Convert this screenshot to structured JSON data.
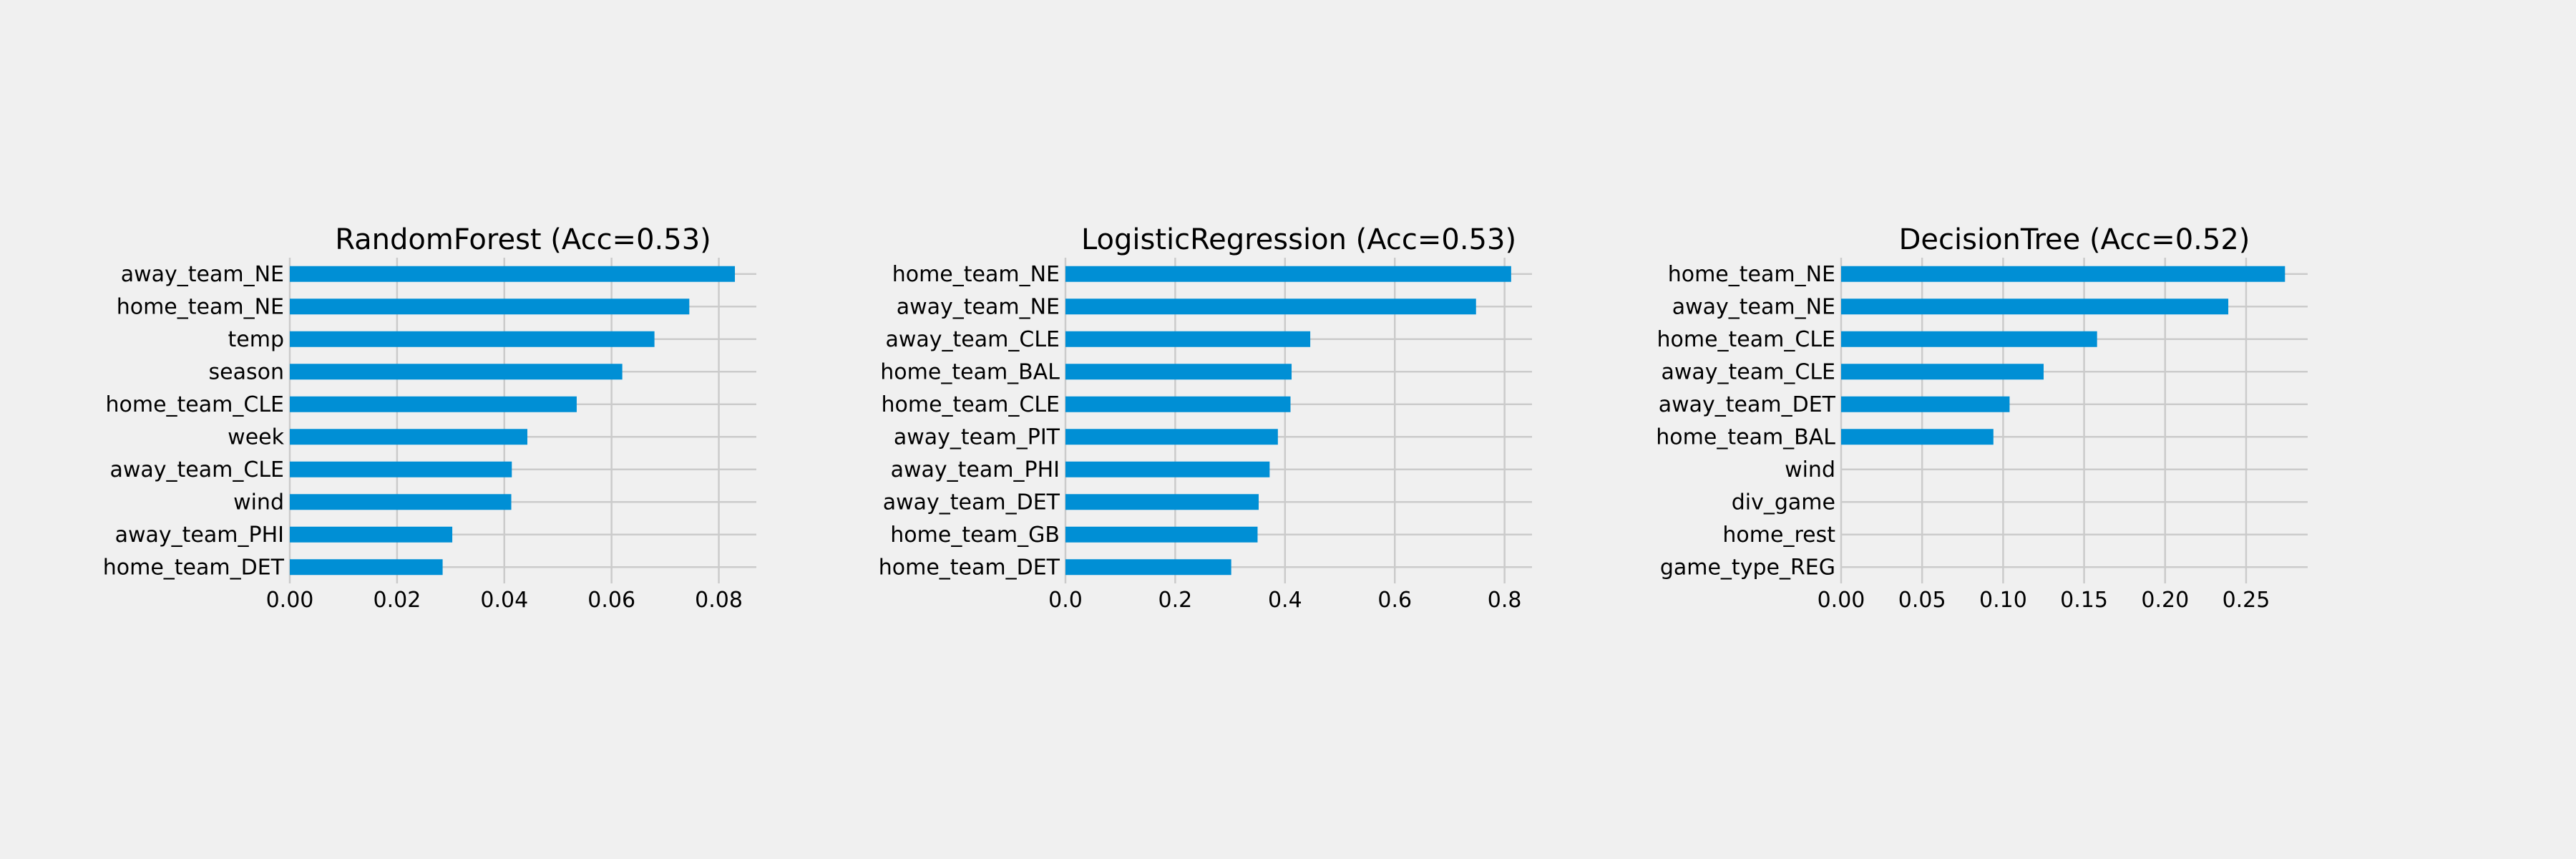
{
  "chart_data": [
    {
      "type": "bar",
      "orientation": "horizontal",
      "title": "RandomForest (Acc=0.53)",
      "xlabel": "",
      "ylabel": "",
      "categories": [
        "away_team_NE",
        "home_team_NE",
        "temp",
        "season",
        "home_team_CLE",
        "week",
        "away_team_CLE",
        "wind",
        "away_team_PHI",
        "home_team_DET"
      ],
      "values": [
        0.083,
        0.0745,
        0.068,
        0.062,
        0.0535,
        0.0443,
        0.0414,
        0.0413,
        0.0303,
        0.0285
      ],
      "xlim": [
        0,
        0.087
      ],
      "xticks": [
        0.0,
        0.02,
        0.04,
        0.06,
        0.08
      ],
      "xtick_labels": [
        "0.00",
        "0.02",
        "0.04",
        "0.06",
        "0.08"
      ],
      "grid": true,
      "bar_color": "#008fd5"
    },
    {
      "type": "bar",
      "orientation": "horizontal",
      "title": "LogisticRegression (Acc=0.53)",
      "xlabel": "",
      "ylabel": "",
      "categories": [
        "home_team_NE",
        "away_team_NE",
        "away_team_CLE",
        "home_team_BAL",
        "home_team_CLE",
        "away_team_PIT",
        "away_team_PHI",
        "away_team_DET",
        "home_team_GB",
        "home_team_DET"
      ],
      "values": [
        0.812,
        0.748,
        0.446,
        0.412,
        0.41,
        0.387,
        0.372,
        0.352,
        0.35,
        0.302
      ],
      "xlim": [
        0,
        0.85
      ],
      "xticks": [
        0.0,
        0.2,
        0.4,
        0.6,
        0.8
      ],
      "xtick_labels": [
        "0.0",
        "0.2",
        "0.4",
        "0.6",
        "0.8"
      ],
      "grid": true,
      "bar_color": "#008fd5"
    },
    {
      "type": "bar",
      "orientation": "horizontal",
      "title": "DecisionTree (Acc=0.52)",
      "xlabel": "",
      "ylabel": "",
      "categories": [
        "home_team_NE",
        "away_team_NE",
        "home_team_CLE",
        "away_team_CLE",
        "away_team_DET",
        "home_team_BAL",
        "wind",
        "div_game",
        "home_rest",
        "game_type_REG"
      ],
      "values": [
        0.274,
        0.239,
        0.158,
        0.125,
        0.104,
        0.094,
        0.0,
        0.0,
        0.0,
        0.0
      ],
      "xlim": [
        0,
        0.288
      ],
      "xticks": [
        0.0,
        0.05,
        0.1,
        0.15,
        0.2,
        0.25
      ],
      "xtick_labels": [
        "0.00",
        "0.05",
        "0.10",
        "0.15",
        "0.20",
        "0.25"
      ],
      "grid": true,
      "bar_color": "#008fd5"
    }
  ]
}
